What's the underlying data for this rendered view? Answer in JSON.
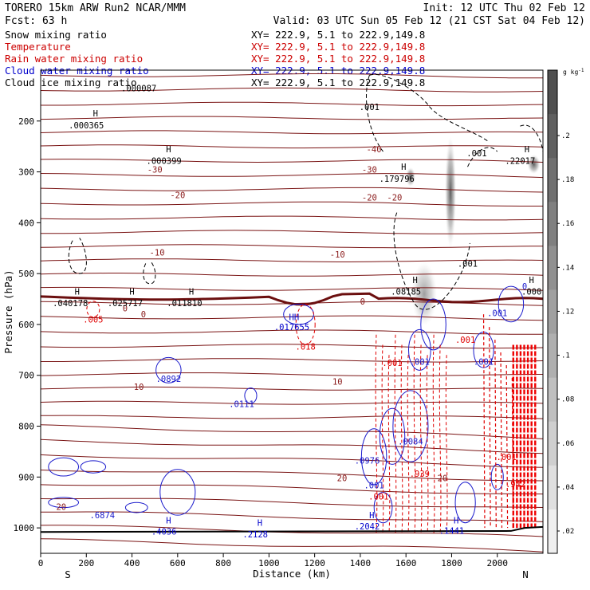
{
  "header": {
    "line1_left": "TORERO  15km ARW   Run2    NCAR/MMM",
    "line1_right": "Init: 12 UTC Thu 02 Feb 12",
    "line2_left": "Fcst:   63 h",
    "line2_right": "Valid: 03 UTC Sun 05 Feb 12 (21 CST Sat 04 Feb 12)"
  },
  "legend": [
    {
      "name": "Snow mixing ratio",
      "info": "XY= 222.9,  5.1 to 222.9,149.8",
      "color": "#000000"
    },
    {
      "name": "Temperature",
      "info": "XY= 222.9,  5.1 to 222.9,149.8",
      "color": "#cc0000"
    },
    {
      "name": "Rain water mixing ratio",
      "info": "XY= 222.9,  5.1 to 222.9,149.8",
      "color": "#cc0000"
    },
    {
      "name": "Cloud water mixing ratio",
      "info": "XY= 222.9,  5.1 to 222.9,149.8",
      "color": "#0000cc"
    },
    {
      "name": "Cloud ice mixing ratio",
      "info": "XY= 222.9,  5.1 to 222.9,149.8",
      "color": "#000000"
    }
  ],
  "chart_data": {
    "type": "contour",
    "xlabel": "Distance (km)",
    "ylabel": "Pressure (hPa)",
    "xlim": [
      0,
      2200
    ],
    "ylim": [
      1050,
      100
    ],
    "x_ticks": [
      "0",
      "200",
      "400",
      "600",
      "800",
      "1000",
      "1200",
      "1400",
      "1600",
      "1800",
      "2000"
    ],
    "y_ticks": [
      "200",
      "300",
      "400",
      "500",
      "600",
      "700",
      "800",
      "900",
      "1000"
    ],
    "endpoint_left": "S",
    "endpoint_right": "N",
    "colorbar": {
      "unit": "g kg",
      "unit_sup": "-1",
      "ticks": [
        ".02",
        ".04",
        ".06",
        ".08",
        ".1",
        ".12",
        ".14",
        ".16",
        ".18",
        ".2"
      ]
    },
    "temperature_labels": [
      {
        "text": "-40",
        "x": 1460,
        "p": 255
      },
      {
        "text": "-30",
        "x": 500,
        "p": 295
      },
      {
        "text": "-30",
        "x": 1440,
        "p": 295
      },
      {
        "text": "-20",
        "x": 600,
        "p": 345
      },
      {
        "text": "-20",
        "x": 1440,
        "p": 350
      },
      {
        "text": "-20",
        "x": 1550,
        "p": 350
      },
      {
        "text": "-10",
        "x": 510,
        "p": 458
      },
      {
        "text": "-10",
        "x": 1300,
        "p": 462
      },
      {
        "text": "0",
        "x": 370,
        "p": 568
      },
      {
        "text": "0",
        "x": 1410,
        "p": 555
      },
      {
        "text": "0",
        "x": 450,
        "p": 580
      },
      {
        "text": "10",
        "x": 430,
        "p": 722
      },
      {
        "text": "10",
        "x": 1300,
        "p": 712
      },
      {
        "text": "20",
        "x": 90,
        "p": 958
      },
      {
        "text": "20",
        "x": 1320,
        "p": 902
      },
      {
        "text": "20",
        "x": 1760,
        "p": 902
      }
    ],
    "snow_labels": [
      {
        "text": ".001",
        "x": 1440,
        "p": 172
      },
      {
        "text": ".001",
        "x": 1910,
        "p": 263
      },
      {
        "text": ".001",
        "x": 1870,
        "p": 480
      }
    ],
    "ice_labels": [
      {
        "text": ".000087",
        "x": 430,
        "p": 135
      }
    ],
    "rain_labels": [
      {
        "text": ".005",
        "x": 230,
        "p": 590
      },
      {
        "text": ".018",
        "x": 1160,
        "p": 643
      },
      {
        "text": ".001",
        "x": 1540,
        "p": 675
      },
      {
        "text": ".001",
        "x": 1860,
        "p": 630
      },
      {
        "text": ".001",
        "x": 2040,
        "p": 860
      },
      {
        "text": ".939",
        "x": 1660,
        "p": 893
      },
      {
        "text": ".001",
        "x": 1480,
        "p": 938
      },
      {
        "text": ".942",
        "x": 2080,
        "p": 914
      }
    ],
    "cloud_labels": [
      {
        "text": ".0892",
        "x": 560,
        "p": 707
      },
      {
        "text": ".0111",
        "x": 880,
        "p": 756
      },
      {
        "text": ".0976",
        "x": 1430,
        "p": 867
      },
      {
        "text": ".001",
        "x": 1460,
        "p": 916
      },
      {
        "text": ".0084",
        "x": 1620,
        "p": 830
      },
      {
        "text": ".001",
        "x": 1660,
        "p": 673
      },
      {
        "text": ".001",
        "x": 1940,
        "p": 673
      },
      {
        "text": ".001",
        "x": 2000,
        "p": 577
      },
      {
        "text": ".6874",
        "x": 270,
        "p": 975
      },
      {
        "text": "0",
        "x": 2120,
        "p": 525
      }
    ],
    "max_labels": [
      {
        "text": "H",
        "x": 240,
        "p": 185,
        "val": ".000365",
        "vx": 200,
        "vp": 208,
        "color": "#000000"
      },
      {
        "text": "H",
        "x": 560,
        "p": 255,
        "val": ".000399",
        "vx": 540,
        "vp": 278,
        "color": "#000000"
      },
      {
        "text": "H",
        "x": 1590,
        "p": 290,
        "val": ".179796",
        "vx": 1560,
        "vp": 313,
        "color": "#000000"
      },
      {
        "text": "H",
        "x": 2130,
        "p": 255,
        "val": ".22017",
        "vx": 2100,
        "vp": 278,
        "color": "#000000"
      },
      {
        "text": "H",
        "x": 160,
        "p": 535,
        "val": ".040178",
        "vx": 130,
        "vp": 558,
        "color": "#000000"
      },
      {
        "text": "H",
        "x": 400,
        "p": 535,
        "val": ".025717",
        "vx": 370,
        "vp": 558,
        "color": "#000000"
      },
      {
        "text": "H",
        "x": 660,
        "p": 535,
        "val": ".011810",
        "vx": 630,
        "vp": 558,
        "color": "#000000"
      },
      {
        "text": "H",
        "x": 1640,
        "p": 512,
        "val": ".08185",
        "vx": 1600,
        "vp": 535,
        "color": "#000000"
      },
      {
        "text": "HH",
        "x": 1110,
        "p": 585,
        "val": ".017655",
        "vx": 1100,
        "vp": 605,
        "color": "#0000cc"
      },
      {
        "text": "H",
        "x": 2150,
        "p": 512,
        "val": ".000",
        "vx": 2150,
        "vp": 535,
        "color": "#000000"
      },
      {
        "text": "H",
        "x": 560,
        "p": 985,
        "val": ".4036",
        "vx": 540,
        "vp": 1007,
        "color": "#0000cc"
      },
      {
        "text": "H",
        "x": 960,
        "p": 990,
        "val": ".2128",
        "vx": 940,
        "vp": 1012,
        "color": "#0000cc"
      },
      {
        "text": "H",
        "x": 1450,
        "p": 975,
        "val": ".2042",
        "vx": 1430,
        "vp": 997,
        "color": "#0000cc"
      },
      {
        "text": "H",
        "x": 1820,
        "p": 985,
        "val": ".1441",
        "vx": 1800,
        "vp": 1005,
        "color": "#0000cc"
      }
    ]
  }
}
